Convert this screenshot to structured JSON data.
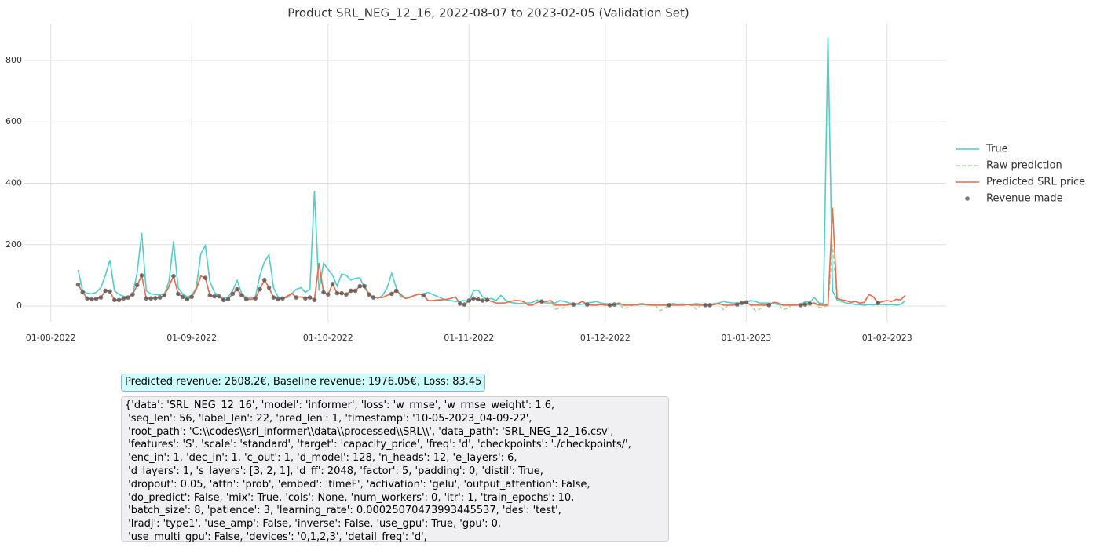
{
  "chart_data": {
    "type": "line",
    "title": "Product SRL_NEG_12_16, 2022-08-07 to 2023-02-05 (Validation Set)",
    "x": [
      "2022-08-07",
      "2022-08-08",
      "2022-08-09",
      "2022-08-10",
      "2022-08-11",
      "2022-08-12",
      "2022-08-13",
      "2022-08-14",
      "2022-08-15",
      "2022-08-16",
      "2022-08-17",
      "2022-08-18",
      "2022-08-19",
      "2022-08-20",
      "2022-08-21",
      "2022-08-22",
      "2022-08-23",
      "2022-08-24",
      "2022-08-25",
      "2022-08-26",
      "2022-08-27",
      "2022-08-28",
      "2022-08-29",
      "2022-08-30",
      "2022-08-31",
      "2022-09-01",
      "2022-09-02",
      "2022-09-03",
      "2022-09-04",
      "2022-09-05",
      "2022-09-06",
      "2022-09-07",
      "2022-09-08",
      "2022-09-09",
      "2022-09-10",
      "2022-09-11",
      "2022-09-12",
      "2022-09-13",
      "2022-09-14",
      "2022-09-15",
      "2022-09-16",
      "2022-09-17",
      "2022-09-18",
      "2022-09-19",
      "2022-09-20",
      "2022-09-21",
      "2022-09-22",
      "2022-09-23",
      "2022-09-24",
      "2022-09-25",
      "2022-09-26",
      "2022-09-27",
      "2022-09-28",
      "2022-09-29",
      "2022-09-30",
      "2022-10-01",
      "2022-10-02",
      "2022-10-03",
      "2022-10-04",
      "2022-10-05",
      "2022-10-06",
      "2022-10-07",
      "2022-10-08",
      "2022-10-09",
      "2022-10-10",
      "2022-10-11",
      "2022-10-12",
      "2022-10-13",
      "2022-10-14",
      "2022-10-15",
      "2022-10-16",
      "2022-10-17",
      "2022-10-18",
      "2022-10-19",
      "2022-10-20",
      "2022-10-21",
      "2022-10-22",
      "2022-10-23",
      "2022-10-24",
      "2022-10-25",
      "2022-10-26",
      "2022-10-27",
      "2022-10-28",
      "2022-10-29",
      "2022-10-30",
      "2022-10-31",
      "2022-11-01",
      "2022-11-02",
      "2022-11-03",
      "2022-11-04",
      "2022-11-05",
      "2022-11-06",
      "2022-11-07",
      "2022-11-08",
      "2022-11-09",
      "2022-11-10",
      "2022-11-11",
      "2022-11-12",
      "2022-11-13",
      "2022-11-14",
      "2022-11-15",
      "2022-11-16",
      "2022-11-17",
      "2022-11-18",
      "2022-11-19",
      "2022-11-20",
      "2022-11-21",
      "2022-11-22",
      "2022-11-23",
      "2022-11-24",
      "2022-11-25",
      "2022-11-26",
      "2022-11-27",
      "2022-11-28",
      "2022-11-29",
      "2022-11-30",
      "2022-12-01",
      "2022-12-02",
      "2022-12-03",
      "2022-12-04",
      "2022-12-05",
      "2022-12-06",
      "2022-12-07",
      "2022-12-08",
      "2022-12-09",
      "2022-12-10",
      "2022-12-11",
      "2022-12-12",
      "2022-12-13",
      "2022-12-14",
      "2022-12-15",
      "2022-12-16",
      "2022-12-17",
      "2022-12-18",
      "2022-12-19",
      "2022-12-20",
      "2022-12-21",
      "2022-12-22",
      "2022-12-23",
      "2022-12-24",
      "2022-12-25",
      "2022-12-26",
      "2022-12-27",
      "2022-12-28",
      "2022-12-29",
      "2022-12-30",
      "2022-12-31",
      "2023-01-01",
      "2023-01-02",
      "2023-01-03",
      "2023-01-04",
      "2023-01-05",
      "2023-01-06",
      "2023-01-07",
      "2023-01-08",
      "2023-01-09",
      "2023-01-10",
      "2023-01-11",
      "2023-01-12",
      "2023-01-13",
      "2023-01-14",
      "2023-01-15",
      "2023-01-16",
      "2023-01-17",
      "2023-01-18",
      "2023-01-19",
      "2023-01-20",
      "2023-01-21",
      "2023-01-22",
      "2023-01-23",
      "2023-01-24",
      "2023-01-25",
      "2023-01-26",
      "2023-01-27",
      "2023-01-28",
      "2023-01-29",
      "2023-01-30",
      "2023-01-31",
      "2023-02-01",
      "2023-02-02",
      "2023-02-03",
      "2023-02-04",
      "2023-02-05"
    ],
    "series": [
      {
        "name": "True",
        "color": "#4ecfc8",
        "style": "solid",
        "values": [
          118,
          50,
          42,
          40,
          45,
          60,
          100,
          150,
          50,
          38,
          32,
          30,
          35,
          110,
          238,
          50,
          40,
          38,
          36,
          40,
          80,
          212,
          60,
          40,
          30,
          35,
          60,
          170,
          197,
          80,
          45,
          30,
          25,
          30,
          50,
          83,
          40,
          28,
          25,
          30,
          100,
          145,
          167,
          60,
          30,
          25,
          28,
          40,
          55,
          60,
          45,
          55,
          375,
          50,
          140,
          120,
          100,
          65,
          105,
          100,
          85,
          90,
          92,
          60,
          40,
          30,
          25,
          35,
          60,
          107,
          60,
          30,
          28,
          30,
          35,
          38,
          40,
          45,
          38,
          32,
          25,
          20,
          18,
          15,
          16,
          18,
          14,
          50,
          52,
          30,
          22,
          25,
          18,
          35,
          20,
          12,
          10,
          8,
          10,
          10,
          12,
          20,
          12,
          10,
          10,
          10,
          18,
          15,
          10,
          8,
          5,
          6,
          10,
          12,
          15,
          10,
          8,
          7,
          5,
          5,
          6,
          4,
          5,
          3,
          5,
          4,
          3,
          4,
          3,
          5,
          6,
          8,
          5,
          7,
          5,
          6,
          8,
          6,
          5,
          5,
          8,
          10,
          15,
          12,
          10,
          10,
          10,
          12,
          18,
          15,
          10,
          10,
          10,
          8,
          5,
          5,
          3,
          5,
          5,
          3,
          15,
          12,
          28,
          10,
          8,
          875,
          50,
          20,
          15,
          10,
          8,
          5,
          5,
          3,
          5,
          4,
          5,
          5,
          4,
          5,
          3,
          5,
          18
        ]
      },
      {
        "name": "Raw prediction",
        "color": "#a9d6a0",
        "style": "dashed",
        "values": [
          70,
          45,
          25,
          22,
          24,
          28,
          50,
          48,
          20,
          20,
          25,
          28,
          38,
          68,
          100,
          25,
          25,
          26,
          28,
          35,
          65,
          98,
          40,
          30,
          22,
          30,
          55,
          98,
          92,
          35,
          32,
          32,
          20,
          22,
          40,
          55,
          35,
          22,
          22,
          25,
          55,
          85,
          60,
          28,
          22,
          25,
          32,
          42,
          28,
          30,
          25,
          28,
          20,
          140,
          45,
          38,
          72,
          42,
          42,
          38,
          50,
          50,
          65,
          65,
          38,
          28,
          28,
          28,
          35,
          40,
          50,
          38,
          25,
          28,
          35,
          40,
          35,
          18,
          18,
          20,
          20,
          22,
          25,
          30,
          8,
          5,
          18,
          25,
          22,
          18,
          20,
          15,
          10,
          10,
          10,
          15,
          18,
          18,
          15,
          3,
          3,
          12,
          15,
          15,
          18,
          -10,
          -8,
          -5,
          5,
          5,
          8,
          15,
          5,
          3,
          3,
          5,
          3,
          3,
          5,
          10,
          -8,
          -5,
          3,
          5,
          8,
          5,
          3,
          3,
          -15,
          -8,
          3,
          3,
          3,
          3,
          5,
          3,
          -10,
          3,
          3,
          3,
          5,
          8,
          -12,
          3,
          3,
          5,
          10,
          12,
          3,
          -15,
          -10,
          3,
          3,
          12,
          10,
          -12,
          -8,
          3,
          3,
          3,
          5,
          8,
          10,
          -5,
          -3,
          2,
          200,
          25,
          20,
          18,
          12,
          15,
          10,
          12,
          38,
          30,
          10,
          15,
          18,
          15,
          22,
          20,
          35
        ]
      },
      {
        "name": "Predicted SRL price",
        "color": "#ee6a4c",
        "style": "solid",
        "values": [
          70,
          45,
          25,
          22,
          24,
          28,
          50,
          48,
          20,
          20,
          25,
          28,
          38,
          68,
          100,
          25,
          25,
          26,
          28,
          35,
          65,
          98,
          40,
          30,
          22,
          30,
          55,
          98,
          92,
          35,
          32,
          32,
          20,
          22,
          40,
          55,
          35,
          22,
          22,
          25,
          55,
          85,
          60,
          28,
          22,
          25,
          32,
          42,
          28,
          30,
          25,
          28,
          20,
          140,
          45,
          38,
          72,
          42,
          42,
          38,
          50,
          50,
          65,
          65,
          38,
          28,
          28,
          28,
          35,
          40,
          50,
          38,
          25,
          28,
          35,
          40,
          35,
          18,
          18,
          20,
          20,
          22,
          25,
          30,
          8,
          5,
          18,
          25,
          22,
          18,
          20,
          15,
          10,
          10,
          10,
          15,
          18,
          18,
          15,
          3,
          3,
          12,
          15,
          15,
          18,
          3,
          3,
          3,
          5,
          5,
          8,
          15,
          5,
          3,
          3,
          5,
          3,
          3,
          5,
          10,
          3,
          3,
          3,
          5,
          8,
          5,
          3,
          3,
          3,
          3,
          3,
          3,
          3,
          3,
          5,
          3,
          3,
          3,
          3,
          3,
          5,
          8,
          3,
          3,
          3,
          5,
          10,
          12,
          3,
          3,
          3,
          3,
          3,
          12,
          10,
          3,
          3,
          3,
          3,
          3,
          5,
          8,
          10,
          3,
          3,
          3,
          320,
          25,
          20,
          18,
          12,
          15,
          10,
          12,
          38,
          30,
          10,
          15,
          18,
          15,
          22,
          20,
          35
        ]
      },
      {
        "name": "Revenue made",
        "color": "#555555",
        "style": "markers",
        "values": [
          70,
          45,
          25,
          22,
          24,
          28,
          50,
          48,
          20,
          20,
          25,
          28,
          38,
          68,
          100,
          25,
          25,
          26,
          28,
          35,
          null,
          98,
          40,
          30,
          22,
          30,
          null,
          null,
          92,
          35,
          32,
          32,
          20,
          22,
          40,
          55,
          35,
          22,
          null,
          25,
          55,
          85,
          60,
          28,
          22,
          25,
          null,
          null,
          28,
          null,
          25,
          28,
          20,
          null,
          45,
          38,
          72,
          42,
          42,
          38,
          50,
          50,
          65,
          65,
          38,
          28,
          null,
          null,
          null,
          40,
          50,
          null,
          null,
          null,
          null,
          null,
          35,
          null,
          null,
          null,
          null,
          null,
          null,
          null,
          8,
          5,
          18,
          25,
          22,
          18,
          20,
          null,
          null,
          null,
          null,
          null,
          null,
          null,
          null,
          null,
          null,
          null,
          15,
          null,
          null,
          null,
          null,
          null,
          null,
          5,
          null,
          null,
          5,
          null,
          null,
          null,
          null,
          3,
          5,
          null,
          null,
          null,
          null,
          null,
          null,
          null,
          null,
          null,
          null,
          null,
          3,
          null,
          null,
          null,
          null,
          null,
          null,
          null,
          3,
          3,
          null,
          null,
          null,
          null,
          null,
          5,
          10,
          12,
          null,
          null,
          null,
          null,
          3,
          null,
          null,
          null,
          null,
          null,
          null,
          3,
          5,
          8,
          null,
          null,
          null,
          null,
          null,
          null,
          null,
          null,
          null,
          null,
          null,
          null,
          null,
          null,
          10,
          null,
          null,
          null,
          null,
          null,
          null
        ]
      }
    ],
    "xlim": [
      "2022-07-26",
      "2023-02-14"
    ],
    "xticks": [
      {
        "value": "2022-08-01",
        "label": "01-08-2022"
      },
      {
        "value": "2022-09-01",
        "label": "01-09-2022"
      },
      {
        "value": "2022-10-01",
        "label": "01-10-2022"
      },
      {
        "value": "2022-11-01",
        "label": "01-11-2022"
      },
      {
        "value": "2022-12-01",
        "label": "01-12-2022"
      },
      {
        "value": "2023-01-01",
        "label": "01-01-2023"
      },
      {
        "value": "2023-02-01",
        "label": "01-02-2023"
      }
    ],
    "ylim": [
      -51,
      920
    ],
    "yticks": [
      0,
      200,
      400,
      600,
      800
    ],
    "grid": true,
    "legend": "right"
  },
  "summary_box": "Predicted revenue: 2608.2€, Baseline revenue: 1976.05€, Loss: 83.45",
  "config_box": [
    "{'data': 'SRL_NEG_12_16', 'model': 'informer', 'loss': 'w_rmse', 'w_rmse_weight': 1.6,",
    " 'seq_len': 56, 'label_len': 22, 'pred_len': 1, 'timestamp': '10-05-2023_04-09-22',",
    " 'root_path': 'C:\\\\codes\\\\srl_informer\\\\data\\\\processed\\\\SRL\\\\', 'data_path': 'SRL_NEG_12_16.csv',",
    " 'features': 'S', 'scale': 'standard', 'target': 'capacity_price', 'freq': 'd', 'checkpoints': './checkpoints/',",
    " 'enc_in': 1, 'dec_in': 1, 'c_out': 1, 'd_model': 128, 'n_heads': 12, 'e_layers': 6,",
    " 'd_layers': 1, 's_layers': [3, 2, 1], 'd_ff': 2048, 'factor': 5, 'padding': 0, 'distil': True,",
    " 'dropout': 0.05, 'attn': 'prob', 'embed': 'timeF', 'activation': 'gelu', 'output_attention': False,",
    " 'do_predict': False, 'mix': True, 'cols': None, 'num_workers': 0, 'itr': 1, 'train_epochs': 10,",
    " 'batch_size': 8, 'patience': 3, 'learning_rate': 0.00025070473993445537, 'des': 'test',",
    " 'lradj': 'type1', 'use_amp': False, 'inverse': False, 'use_gpu': True, 'gpu': 0,",
    " 'use_multi_gpu': False, 'devices': '0,1,2,3', 'detail_freq': 'd',"
  ]
}
